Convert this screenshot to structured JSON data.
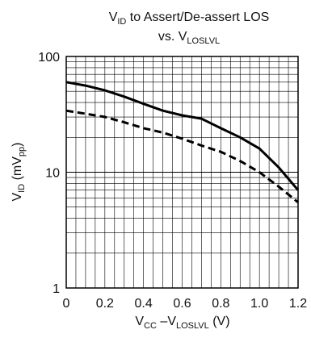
{
  "chart_data": {
    "type": "line",
    "title": {
      "line1": {
        "main": "V",
        "sub": "ID",
        "rest": " to Assert/De-assert LOS"
      },
      "line2": {
        "main": "vs. V",
        "sub": "LOSLVL"
      }
    },
    "xlabel": {
      "p1": "V",
      "s1": "CC",
      "p2": " –V",
      "s2": "LOSLVL",
      "p3": " (V)"
    },
    "ylabel": {
      "p1": "V",
      "s1": "ID",
      "p2": " (mV",
      "s2": "pp",
      "p3": ")"
    },
    "x_ticks": [
      "0",
      "0.2",
      "0.4",
      "0.6",
      "0.8",
      "1.0",
      "1.2"
    ],
    "y_ticks": [
      "1",
      "10",
      "100"
    ],
    "xlim": [
      0,
      1.2
    ],
    "ylim": [
      1,
      100
    ],
    "yscale": "log",
    "grid": true,
    "series": [
      {
        "style": "solid",
        "color": "#000000",
        "x": [
          0,
          0.1,
          0.2,
          0.3,
          0.4,
          0.5,
          0.6,
          0.7,
          0.8,
          0.9,
          1.0,
          1.1,
          1.2
        ],
        "y": [
          60,
          56,
          51,
          45,
          39,
          34,
          31,
          29,
          24,
          20,
          16,
          11,
          7
        ]
      },
      {
        "style": "dashed",
        "color": "#000000",
        "x": [
          0,
          0.1,
          0.2,
          0.3,
          0.4,
          0.5,
          0.6,
          0.7,
          0.8,
          0.9,
          1.0,
          1.1,
          1.2
        ],
        "y": [
          34,
          32,
          30,
          27,
          24,
          22,
          19.5,
          17,
          15,
          12.5,
          10,
          7.5,
          5.5
        ]
      }
    ]
  }
}
